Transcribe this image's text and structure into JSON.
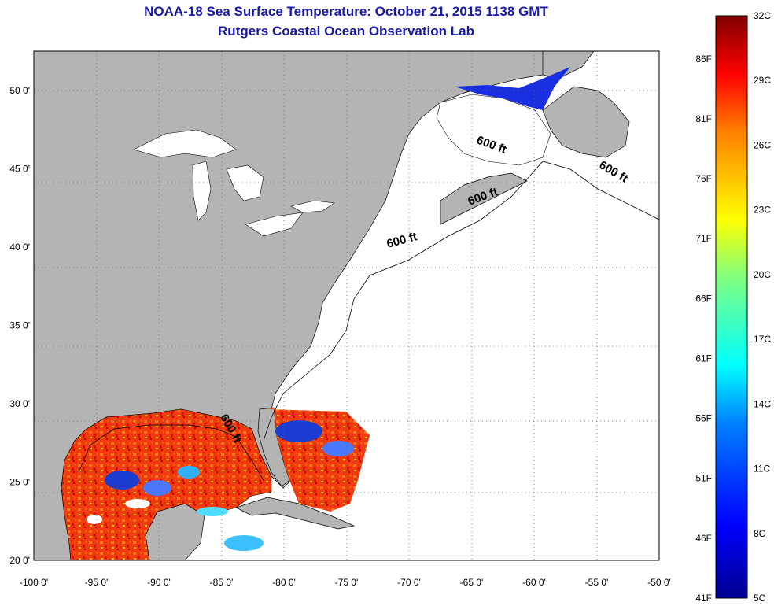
{
  "title": {
    "line1": "NOAA-18 Sea Surface Temperature:  October 21, 2015 1138 GMT",
    "line2": "Rutgers Coastal Ocean Observation Lab"
  },
  "map": {
    "lon_range": [
      -100,
      -50
    ],
    "lat_range": [
      20,
      52.5
    ],
    "lon_ticks": [
      "-100 0'",
      "-95 0'",
      "-90 0'",
      "-85 0'",
      "-80 0'",
      "-75 0'",
      "-70 0'",
      "-65 0'",
      "-60 0'",
      "-55 0'",
      "-50 0'"
    ],
    "lat_ticks": [
      "20 0'",
      "25 0'",
      "30 0'",
      "35 0'",
      "40 0'",
      "45 0'",
      "50 0'"
    ],
    "grid": "dotted",
    "land_color": "#b4b4b4",
    "contour_labels": [
      {
        "text": "600 ft",
        "lon": -63.5,
        "lat": 46.3,
        "angle": 20
      },
      {
        "text": "600 ft",
        "lon": -53.8,
        "lat": 44.6,
        "angle": 30
      },
      {
        "text": "600 ft",
        "lon": -64.0,
        "lat": 43.0,
        "angle": -20
      },
      {
        "text": "600 ft",
        "lon": -70.5,
        "lat": 40.2,
        "angle": -15
      },
      {
        "text": "600 ft",
        "lon": -84.5,
        "lat": 28.3,
        "angle": 60
      }
    ]
  },
  "colorbar": {
    "celsius_labels": [
      "32C",
      "29C",
      "26C",
      "23C",
      "20C",
      "17C",
      "14C",
      "11C",
      "8C",
      "5C"
    ],
    "fahrenheit_labels": [
      "86F",
      "81F",
      "76F",
      "71F",
      "66F",
      "61F",
      "56F",
      "51F",
      "46F",
      "41F"
    ],
    "colors": [
      "#00008f",
      "#0000ff",
      "#0080ff",
      "#00ffff",
      "#80ff80",
      "#ffff00",
      "#ff8000",
      "#ff0000",
      "#800000"
    ]
  }
}
